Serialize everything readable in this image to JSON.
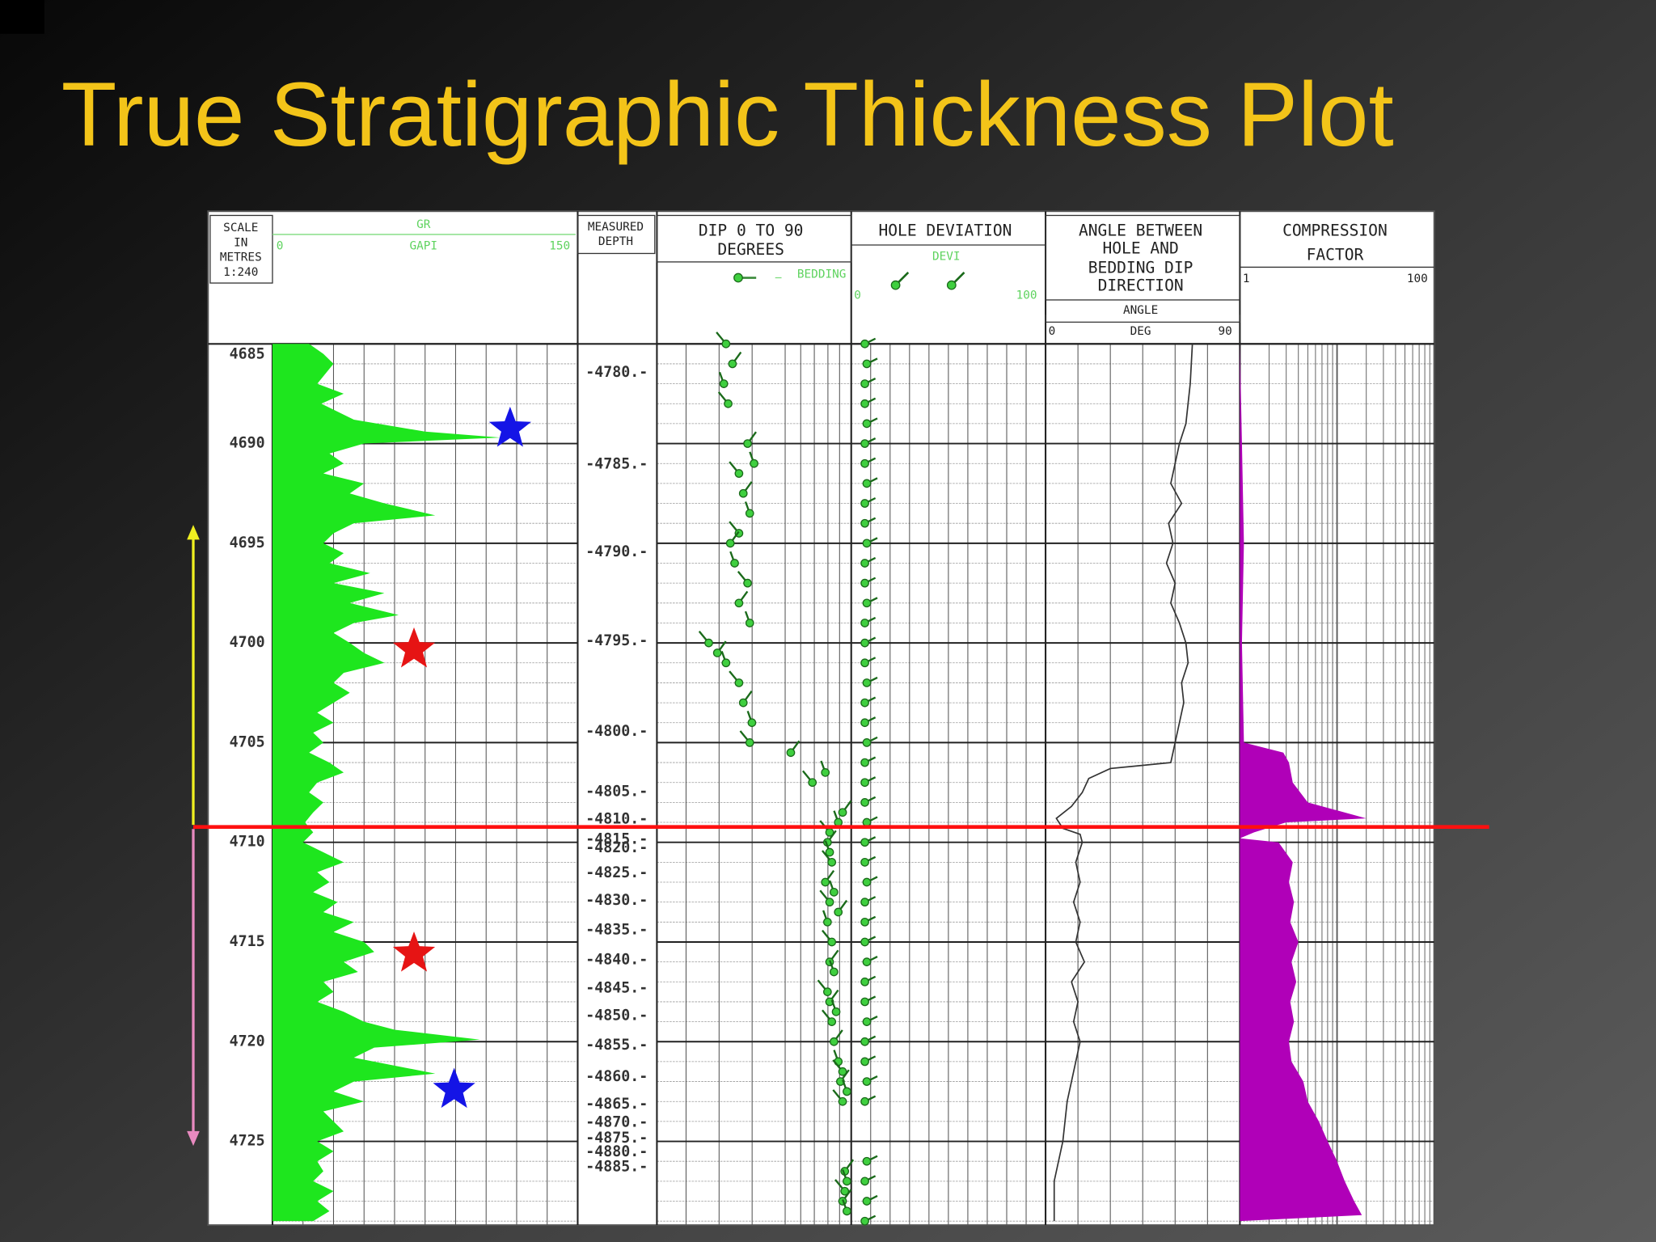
{
  "title": "True Stratigraphic Thickness Plot",
  "scale_box": [
    "SCALE",
    "IN",
    "METRES",
    "1:240"
  ],
  "depth_lim": [
    4685,
    4729.2
  ],
  "depth_ticks": [
    4685,
    4690,
    4695,
    4700,
    4705,
    4710,
    4715,
    4720,
    4725
  ],
  "gr_track": {
    "name": "GR",
    "unit": "GAPI",
    "xlim": [
      0,
      150
    ],
    "color": "#1ee61e",
    "depths": [
      4685,
      4685.5,
      4686,
      4687,
      4687.5,
      4688,
      4688.8,
      4689.4,
      4689.7,
      4690,
      4690.5,
      4691,
      4691.5,
      4692,
      4692.5,
      4693,
      4693.6,
      4694,
      4694.5,
      4695,
      4695.5,
      4696,
      4696.5,
      4697,
      4697.5,
      4698,
      4698.6,
      4699,
      4699.5,
      4700,
      4700.5,
      4701,
      4701.5,
      4702,
      4702.5,
      4703,
      4703.5,
      4704,
      4704.5,
      4705,
      4705.5,
      4706,
      4706.5,
      4707,
      4707.5,
      4708,
      4708.5,
      4709,
      4709.5,
      4710,
      4710.5,
      4711,
      4711.5,
      4712,
      4712.5,
      4713,
      4713.5,
      4714,
      4714.5,
      4715,
      4715.5,
      4716,
      4716.5,
      4717,
      4717.5,
      4718,
      4718.5,
      4719,
      4719.4,
      4719.9,
      4720.3,
      4720.8,
      4721.3,
      4721.6,
      4722,
      4722.5,
      4723,
      4723.5,
      4724,
      4724.5,
      4725,
      4725.5,
      4726,
      4726.5,
      4727,
      4727.5,
      4728,
      4728.5,
      4729
    ],
    "values": [
      18,
      25,
      30,
      22,
      35,
      24,
      40,
      75,
      112,
      45,
      28,
      35,
      25,
      45,
      38,
      55,
      80,
      40,
      30,
      25,
      35,
      28,
      48,
      30,
      55,
      38,
      62,
      40,
      30,
      38,
      45,
      55,
      35,
      30,
      38,
      30,
      22,
      30,
      20,
      25,
      18,
      28,
      35,
      22,
      18,
      25,
      20,
      16,
      20,
      15,
      25,
      35,
      22,
      28,
      20,
      32,
      25,
      40,
      30,
      45,
      50,
      35,
      42,
      25,
      30,
      22,
      35,
      45,
      60,
      102,
      50,
      40,
      65,
      80,
      40,
      30,
      45,
      25,
      30,
      35,
      22,
      30,
      22,
      25,
      20,
      30,
      22,
      28,
      20
    ]
  },
  "md_track": {
    "header": [
      "MEASURED",
      "DEPTH"
    ],
    "labels": [
      "-4780.-",
      "-4785.-",
      "-4790.-",
      "-4795.-",
      "-4800.-",
      "-4805.-",
      "-4810.-",
      "-4815.-",
      "-4820.-",
      "-4825.-",
      "-4830.-",
      "-4835.-",
      "-4840.-",
      "-4845.-",
      "-4850.-",
      "-4855.-",
      "-4860.-",
      "-4865.-",
      "-4870.-",
      "-4875.-",
      "-4880.-",
      "-4885.-"
    ]
  },
  "dip_track": {
    "header": [
      "DIP 0 TO 90",
      "DEGREES"
    ],
    "legend": "BEDDING",
    "xlim": [
      0,
      90
    ],
    "color": "#3fcf3f",
    "depths": [
      4685,
      4686,
      4687,
      4688,
      4690,
      4691,
      4691.5,
      4692.5,
      4693.5,
      4694.5,
      4695,
      4696,
      4697,
      4698,
      4699,
      4700,
      4700.5,
      4701,
      4702,
      4703,
      4704,
      4705,
      4705.5,
      4706.5,
      4707,
      4708.5,
      4709,
      4709.5,
      4710,
      4710.5,
      4711,
      4712,
      4712.5,
      4713,
      4713.5,
      4714,
      4715,
      4716,
      4716.5,
      4717.5,
      4718,
      4718.5,
      4719,
      4720,
      4721,
      4721.5,
      4722,
      4722.5,
      4723,
      4726.5,
      4727,
      4727.5,
      4728,
      4728.5
    ],
    "values": [
      32,
      35,
      31,
      33,
      42,
      45,
      38,
      40,
      43,
      38,
      34,
      36,
      42,
      38,
      43,
      24,
      28,
      32,
      38,
      40,
      44,
      43,
      62,
      78,
      72,
      86,
      84,
      80,
      79,
      80,
      81,
      78,
      82,
      80,
      84,
      79,
      81,
      80,
      82,
      79,
      80,
      83,
      81,
      82,
      84,
      86,
      85,
      88,
      86,
      87,
      88,
      87,
      86,
      88
    ]
  },
  "deviation_track": {
    "header": "HOLE DEVIATION",
    "name": "DEVI",
    "xlim": [
      0,
      100
    ],
    "color": "#3fcf3f",
    "depths": [
      4685,
      4686,
      4687,
      4688,
      4689,
      4690,
      4691,
      4692,
      4693,
      4694,
      4695,
      4696,
      4697,
      4698,
      4699,
      4700,
      4701,
      4702,
      4703,
      4704,
      4705,
      4706,
      4707,
      4708,
      4709,
      4710,
      4711,
      4712,
      4713,
      4714,
      4715,
      4716,
      4717,
      4718,
      4719,
      4720,
      4721,
      4722,
      4723,
      4726,
      4727,
      4728,
      4729
    ],
    "values": [
      7,
      8,
      7,
      7,
      8,
      7,
      7,
      8,
      7,
      7,
      8,
      7,
      7,
      8,
      7,
      7,
      7,
      8,
      7,
      7,
      8,
      7,
      7,
      7,
      8,
      7,
      7,
      8,
      7,
      7,
      7,
      8,
      7,
      7,
      8,
      7,
      7,
      8,
      7,
      8,
      7,
      8,
      7
    ]
  },
  "angle_track": {
    "header": [
      "ANGLE BETWEEN",
      "HOLE AND",
      "BEDDING DIP",
      "DIRECTION"
    ],
    "name": "ANGLE",
    "unit": "DEG",
    "xlim": [
      0,
      90
    ],
    "color": "#333333",
    "depths": [
      4685,
      4687,
      4689,
      4690,
      4691,
      4692,
      4693,
      4694,
      4695,
      4696,
      4697,
      4698,
      4699,
      4700,
      4701,
      4702,
      4703,
      4704,
      4705,
      4706,
      4706.3,
      4706.8,
      4707.5,
      4708.2,
      4708.8,
      4709.3,
      4709.6,
      4710,
      4711,
      4712,
      4713,
      4714,
      4715,
      4716,
      4717,
      4718,
      4719,
      4720,
      4721,
      4722,
      4723,
      4725,
      4727,
      4729
    ],
    "values": [
      68,
      67,
      65,
      62,
      60,
      58,
      63,
      57,
      59,
      56,
      60,
      58,
      62,
      65,
      66,
      63,
      64,
      62,
      60,
      58,
      30,
      20,
      17,
      12,
      5,
      8,
      16,
      17,
      14,
      16,
      13,
      16,
      14,
      18,
      12,
      15,
      13,
      16,
      14,
      12,
      10,
      8,
      4,
      4
    ]
  },
  "compression_track": {
    "header": [
      "COMPRESSION",
      "FACTOR"
    ],
    "xlim": [
      1,
      100
    ],
    "log": true,
    "color": "#b000b8",
    "depths": [
      4685,
      4690,
      4695,
      4700,
      4705,
      4705.5,
      4706,
      4707,
      4708,
      4708.8,
      4709,
      4709.5,
      4709.8,
      4710,
      4711,
      4712,
      4713,
      4714,
      4715,
      4716,
      4717,
      4718,
      4719,
      4720,
      4721,
      4722,
      4723,
      4724,
      4725,
      4726,
      4727,
      4728,
      4728.7,
      4729
    ],
    "values": [
      1,
      1.05,
      1.1,
      1.05,
      1.1,
      2.8,
      3.2,
      3.5,
      5,
      20,
      3,
      1.4,
      1,
      2.5,
      3.5,
      3.2,
      3.6,
      3.3,
      4,
      3.4,
      3.8,
      3.3,
      3.6,
      3.2,
      3.4,
      4.5,
      5,
      6.5,
      8,
      10,
      12,
      15,
      18,
      1
    ]
  }
}
